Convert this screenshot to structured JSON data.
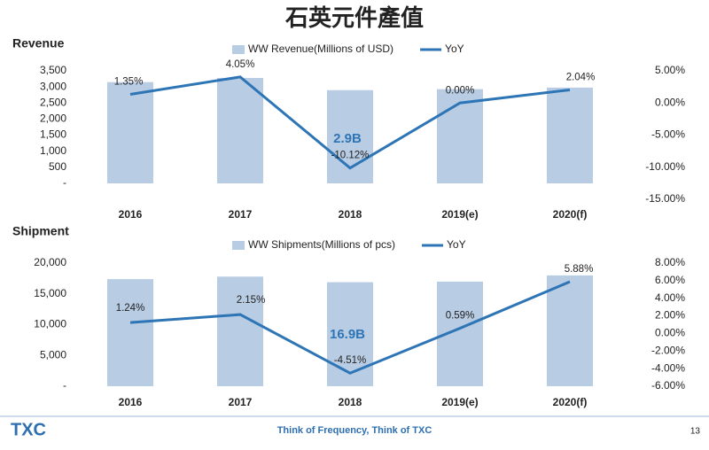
{
  "title": "石英元件產值",
  "footer": "Think of Frequency, Think of TXC",
  "logo": "TXC",
  "page_number": "13",
  "chart_data": [
    {
      "type": "combo",
      "title": "Revenue",
      "categories": [
        "2016",
        "2017",
        "2018",
        "2019(e)",
        "2020(f)"
      ],
      "series": [
        {
          "name": "WW Revenue(Millions of USD)",
          "type": "bar",
          "color": "#b8cce4",
          "values": [
            3150,
            3280,
            2900,
            2930,
            2980
          ]
        },
        {
          "name": "YoY",
          "type": "line",
          "axis": "y2",
          "color": "#2e75b6",
          "values": [
            1.35,
            4.05,
            -10.12,
            0.0,
            2.04
          ],
          "value_labels": [
            "1.35%",
            "4.05%",
            "-10.12%",
            "0.00%",
            "2.04%"
          ]
        }
      ],
      "annotation": "2.9B",
      "ylim": [
        0,
        3500
      ],
      "yticks": [
        {
          "value": 0,
          "label": "-"
        },
        500,
        {
          "value": 1000,
          "label": "1,000"
        },
        {
          "value": 1500,
          "label": "1,500"
        },
        {
          "value": 2000,
          "label": "2,000"
        },
        {
          "value": 2500,
          "label": "2,500"
        },
        {
          "value": 3000,
          "label": "3,000"
        },
        {
          "value": 3500,
          "label": "3,500"
        }
      ],
      "y2lim": [
        -15,
        5
      ],
      "y2ticks": [
        {
          "value": -15,
          "label": "-15.00%"
        },
        {
          "value": -10,
          "label": "-10.00%"
        },
        {
          "value": -5,
          "label": "-5.00%"
        },
        {
          "value": 0,
          "label": "0.00%"
        },
        {
          "value": 5,
          "label": "5.00%"
        }
      ]
    },
    {
      "type": "combo",
      "title": "Shipment",
      "categories": [
        "2016",
        "2017",
        "2018",
        "2019(e)",
        "2020(f)"
      ],
      "series": [
        {
          "name": "WW Shipments(Millions of pcs)",
          "type": "bar",
          "color": "#b8cce4",
          "values": [
            17400,
            17800,
            16900,
            17000,
            18000
          ]
        },
        {
          "name": "YoY",
          "type": "line",
          "axis": "y2",
          "color": "#2e75b6",
          "values": [
            1.24,
            2.15,
            -4.51,
            0.59,
            5.88
          ],
          "value_labels": [
            "1.24%",
            "2.15%",
            "-4.51%",
            "0.59%",
            "5.88%"
          ]
        }
      ],
      "annotation": "16.9B",
      "ylim": [
        0,
        20000
      ],
      "yticks": [
        {
          "value": 0,
          "label": "-"
        },
        {
          "value": 5000,
          "label": "5,000"
        },
        {
          "value": 10000,
          "label": "10,000"
        },
        {
          "value": 15000,
          "label": "15,000"
        },
        {
          "value": 20000,
          "label": "20,000"
        }
      ],
      "y2lim": [
        -6,
        8
      ],
      "y2ticks": [
        {
          "value": -6,
          "label": "-6.00%"
        },
        {
          "value": -4,
          "label": "-4.00%"
        },
        {
          "value": -2,
          "label": "-2.00%"
        },
        {
          "value": 0,
          "label": "0.00%"
        },
        {
          "value": 2,
          "label": "2.00%"
        },
        {
          "value": 4,
          "label": "4.00%"
        },
        {
          "value": 6,
          "label": "6.00%"
        },
        {
          "value": 8,
          "label": "8.00%"
        }
      ]
    }
  ]
}
